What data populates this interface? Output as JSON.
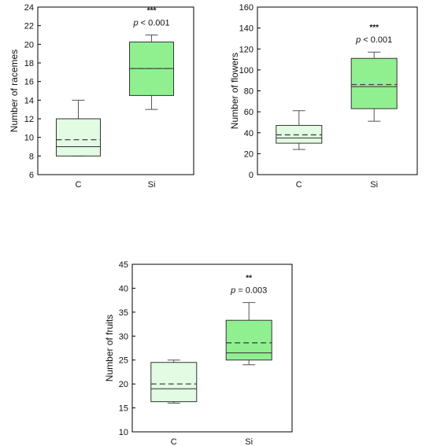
{
  "colors": {
    "control_fill": "#e2fbe2",
    "si_fill": "#90f090",
    "box_stroke": "#333333",
    "whisker": "#555555",
    "frame": "#000000"
  },
  "chart_data": [
    {
      "type": "box",
      "ylabel": "Number of racemes",
      "ylim": [
        6,
        24
      ],
      "yticks": [
        "6",
        "8",
        "10",
        "12",
        "14",
        "16",
        "18",
        "20",
        "22",
        "24"
      ],
      "categories": [
        "C",
        "Si"
      ],
      "boxes": [
        {
          "category": "C",
          "whisker_low": 8,
          "q1": 8,
          "median": 9,
          "mean": 9.75,
          "q3": 12,
          "whisker_high": 14
        },
        {
          "category": "Si",
          "whisker_low": 13,
          "q1": 14.5,
          "median": 17.4,
          "mean": 17.4,
          "q3": 20.25,
          "whisker_high": 21
        }
      ],
      "annotation": {
        "category": "Si",
        "stars": "***",
        "p_label": "p",
        "p_rest": " < 0.001"
      }
    },
    {
      "type": "box",
      "ylabel": "Number of flowers",
      "ylim": [
        0,
        160
      ],
      "yticks": [
        "0",
        "20",
        "40",
        "60",
        "80",
        "100",
        "120",
        "140",
        "160"
      ],
      "categories": [
        "C",
        "Si"
      ],
      "boxes": [
        {
          "category": "C",
          "whisker_low": 24,
          "q1": 30,
          "median": 35,
          "mean": 38,
          "q3": 47,
          "whisker_high": 61
        },
        {
          "category": "Si",
          "whisker_low": 51,
          "q1": 63,
          "median": 84,
          "mean": 86,
          "q3": 111,
          "whisker_high": 117
        }
      ],
      "annotation": {
        "category": "Si",
        "stars": "***",
        "p_label": "p",
        "p_rest": " < 0.001"
      }
    },
    {
      "type": "box",
      "ylabel": "Number of fruits",
      "ylim": [
        10,
        45
      ],
      "yticks": [
        "10",
        "15",
        "20",
        "25",
        "30",
        "35",
        "40",
        "45"
      ],
      "categories": [
        "C",
        "Si"
      ],
      "boxes": [
        {
          "category": "C",
          "whisker_low": 16,
          "q1": 16.3,
          "median": 19,
          "mean": 20,
          "q3": 24.5,
          "whisker_high": 25
        },
        {
          "category": "Si",
          "whisker_low": 24,
          "q1": 25,
          "median": 26.5,
          "mean": 28.6,
          "q3": 33.3,
          "whisker_high": 37
        }
      ],
      "annotation": {
        "category": "Si",
        "stars": "**",
        "p_label": "p",
        "p_rest": " = 0.003"
      }
    }
  ]
}
